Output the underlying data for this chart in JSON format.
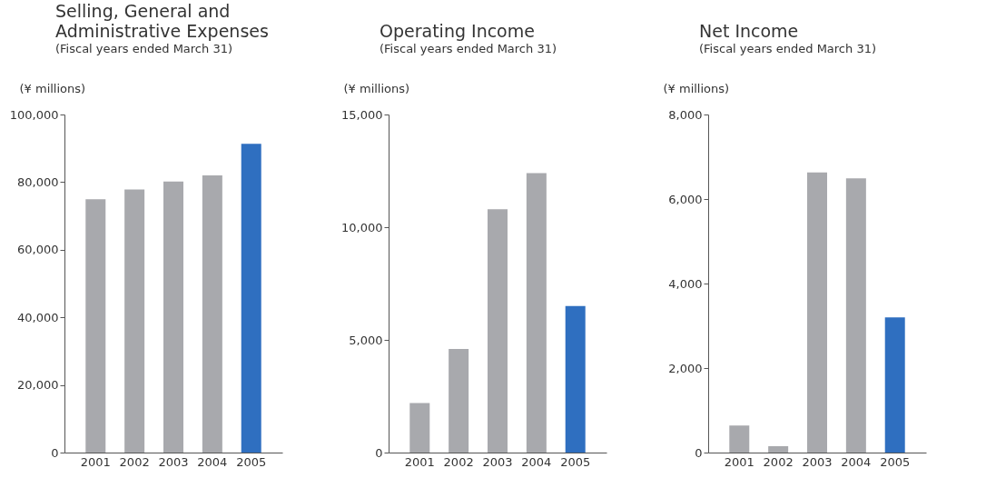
{
  "chart_data": [
    {
      "type": "bar",
      "title": "Selling, General and\nAdministrative Expenses",
      "subtitle": "(Fiscal years ended March 31)",
      "ylabel": "(¥ millions)",
      "categories": [
        "2001",
        "2002",
        "2003",
        "2004",
        "2005"
      ],
      "values": [
        74900,
        77800,
        80200,
        82000,
        91300
      ],
      "colors": [
        "#a8a9ad",
        "#a8a9ad",
        "#a8a9ad",
        "#a8a9ad",
        "#2f6fc0"
      ],
      "ylim": [
        0,
        100000
      ],
      "yticks": [
        {
          "value": 0,
          "label": "0"
        },
        {
          "value": 20000,
          "label": "20,000"
        },
        {
          "value": 40000,
          "label": "40,000"
        },
        {
          "value": 60000,
          "label": "60,000"
        },
        {
          "value": 80000,
          "label": "80,000"
        },
        {
          "value": 100000,
          "label": "100,000"
        }
      ]
    },
    {
      "type": "bar",
      "title": "Operating Income",
      "subtitle": "(Fiscal years ended March 31)",
      "ylabel": "(¥ millions)",
      "categories": [
        "2001",
        "2002",
        "2003",
        "2004",
        "2005"
      ],
      "values": [
        2200,
        4600,
        10800,
        12400,
        6500
      ],
      "colors": [
        "#a8a9ad",
        "#a8a9ad",
        "#a8a9ad",
        "#a8a9ad",
        "#2f6fc0"
      ],
      "ylim": [
        0,
        15000
      ],
      "yticks": [
        {
          "value": 0,
          "label": "0"
        },
        {
          "value": 5000,
          "label": "5,000"
        },
        {
          "value": 10000,
          "label": "10,000"
        },
        {
          "value": 15000,
          "label": "15,000"
        }
      ]
    },
    {
      "type": "bar",
      "title": "Net Income",
      "subtitle": "(Fiscal years ended March 31)",
      "ylabel": "(¥ millions)",
      "categories": [
        "2001",
        "2002",
        "2003",
        "2004",
        "2005"
      ],
      "values": [
        640,
        150,
        6630,
        6490,
        3200
      ],
      "colors": [
        "#a8a9ad",
        "#a8a9ad",
        "#a8a9ad",
        "#a8a9ad",
        "#2f6fc0"
      ],
      "ylim": [
        0,
        8000
      ],
      "yticks": [
        {
          "value": 0,
          "label": "0"
        },
        {
          "value": 2000,
          "label": "2,000"
        },
        {
          "value": 4000,
          "label": "4,000"
        },
        {
          "value": 6000,
          "label": "6,000"
        },
        {
          "value": 8000,
          "label": "8,000"
        }
      ]
    }
  ]
}
